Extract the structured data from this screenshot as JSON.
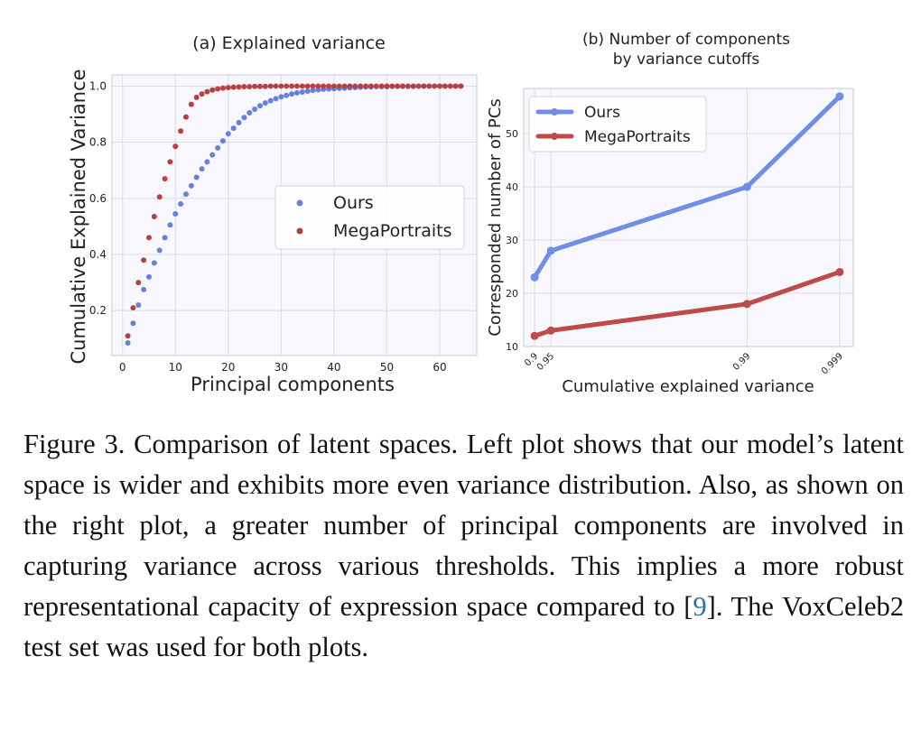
{
  "chart_data": [
    {
      "type": "scatter",
      "title": "(a) Explained variance",
      "xlabel": "Principal components",
      "ylabel": "Cumulative Explained Variance",
      "xlim": [
        -2,
        67
      ],
      "ylim": [
        0.04,
        1.04
      ],
      "xticks": [
        0,
        10,
        20,
        30,
        40,
        50,
        60
      ],
      "yticks": [
        0.2,
        0.4,
        0.6,
        0.8,
        1.0
      ],
      "ytick_labels": [
        "0.2",
        "0.4",
        "0.6",
        "0.8",
        "1.0"
      ],
      "grid": true,
      "legend": "center-right",
      "series": [
        {
          "name": "Ours",
          "color": "#6681db",
          "x": [
            1,
            2,
            3,
            4,
            5,
            6,
            7,
            8,
            9,
            10,
            11,
            12,
            13,
            14,
            15,
            16,
            17,
            18,
            19,
            20,
            21,
            22,
            23,
            24,
            25,
            26,
            27,
            28,
            29,
            30,
            31,
            32,
            33,
            34,
            35,
            36,
            37,
            38,
            39,
            40,
            41,
            42,
            43,
            44,
            45,
            46,
            47,
            48,
            49,
            50,
            51,
            52,
            53,
            54,
            55,
            56,
            57,
            58,
            59,
            60,
            61,
            62,
            63,
            64
          ],
          "values": [
            0.085,
            0.155,
            0.22,
            0.275,
            0.32,
            0.37,
            0.415,
            0.46,
            0.505,
            0.545,
            0.58,
            0.615,
            0.645,
            0.675,
            0.705,
            0.73,
            0.755,
            0.78,
            0.805,
            0.83,
            0.85,
            0.87,
            0.888,
            0.905,
            0.918,
            0.93,
            0.94,
            0.948,
            0.955,
            0.962,
            0.967,
            0.972,
            0.976,
            0.979,
            0.982,
            0.985,
            0.987,
            0.989,
            0.99,
            0.991,
            0.992,
            0.993,
            0.994,
            0.995,
            0.996,
            0.997,
            0.997,
            0.998,
            0.998,
            0.998,
            0.999,
            0.999,
            0.999,
            0.999,
            0.999,
            1.0,
            1.0,
            1.0,
            1.0,
            1.0,
            1.0,
            1.0,
            1.0,
            1.0
          ]
        },
        {
          "name": "MegaPortraits",
          "color": "#b8403f",
          "x": [
            1,
            2,
            3,
            4,
            5,
            6,
            7,
            8,
            9,
            10,
            11,
            12,
            13,
            14,
            15,
            16,
            17,
            18,
            19,
            20,
            21,
            22,
            23,
            24,
            25,
            26,
            27,
            28,
            29,
            30,
            31,
            32,
            33,
            34,
            35,
            36,
            37,
            38,
            39,
            40,
            41,
            42,
            43,
            44,
            45,
            46,
            47,
            48,
            49,
            50,
            51,
            52,
            53,
            54,
            55,
            56,
            57,
            58,
            59,
            60,
            61,
            62,
            63,
            64
          ],
          "values": [
            0.11,
            0.21,
            0.3,
            0.38,
            0.46,
            0.535,
            0.605,
            0.67,
            0.73,
            0.785,
            0.84,
            0.89,
            0.935,
            0.96,
            0.972,
            0.98,
            0.986,
            0.99,
            0.993,
            0.995,
            0.996,
            0.997,
            0.998,
            0.998,
            0.999,
            0.999,
            0.999,
            1.0,
            1.0,
            1.0,
            1.0,
            1.0,
            1.0,
            1.0,
            1.0,
            1.0,
            1.0,
            1.0,
            1.0,
            1.0,
            1.0,
            1.0,
            1.0,
            1.0,
            1.0,
            1.0,
            1.0,
            1.0,
            1.0,
            1.0,
            1.0,
            1.0,
            1.0,
            1.0,
            1.0,
            1.0,
            1.0,
            1.0,
            1.0,
            1.0,
            1.0,
            1.0,
            1.0,
            1.0
          ]
        }
      ]
    },
    {
      "type": "line",
      "title_line1": "(b) Number of components",
      "title_line2": "by variance cutoffs",
      "xlabel": "Cumulative explained variance",
      "ylabel": "Corresponded number of PCs",
      "categories": [
        "0.9",
        "0.95",
        "0.99",
        "0.999"
      ],
      "x_positions": [
        1,
        4,
        40,
        57
      ],
      "xlim": [
        -1,
        59.5
      ],
      "ylim": [
        10,
        58.5
      ],
      "yticks": [
        10,
        20,
        30,
        40,
        50
      ],
      "grid": true,
      "legend": "top-left",
      "series": [
        {
          "name": "Ours",
          "color": "#6f8ee6",
          "values": [
            23,
            28,
            40,
            57
          ]
        },
        {
          "name": "MegaPortraits",
          "color": "#bf4a4a",
          "values": [
            12,
            13,
            18,
            24
          ]
        }
      ]
    }
  ],
  "caption": {
    "prefix": "Figure 3. Comparison of latent spaces. Left plot shows that our model’s latent space is wider and exhibits more even variance distribution. Also, as shown on the right plot, a greater number of principal components are involved in capturing variance across various thresholds. This implies a more robust representational capacity of expression space compared to [",
    "ref": "9",
    "suffix": "]. The VoxCeleb2 test set was used for both plots."
  }
}
